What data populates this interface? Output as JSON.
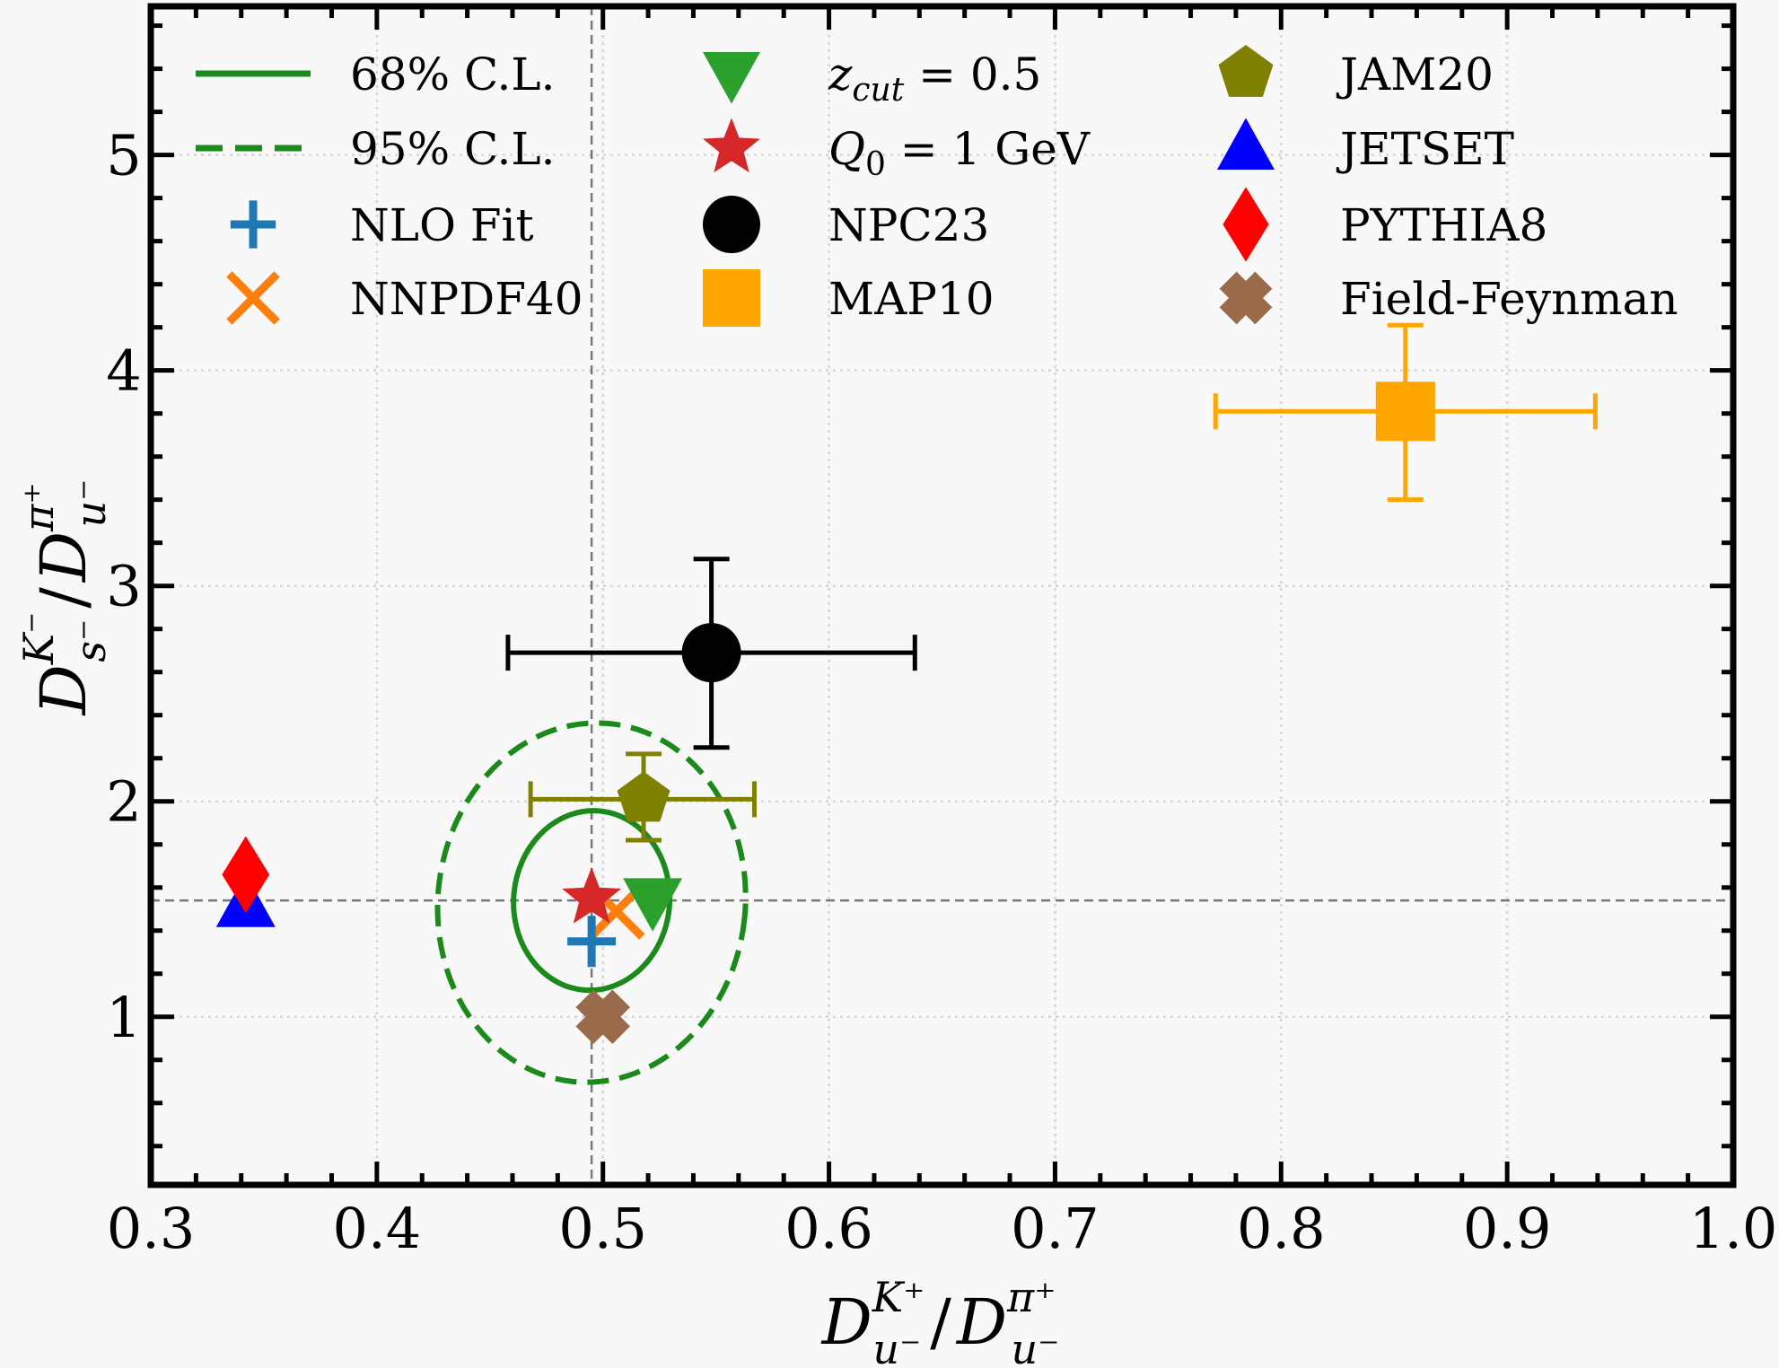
{
  "chart_data": {
    "type": "scatter",
    "title": "",
    "xlabel": {
      "main": "D",
      "sup1": "K⁺",
      "sub1": "u⁻",
      "sep": "/",
      "sup2": "π⁺",
      "sub2": "u⁻",
      "text": "D^{K+}_{u-} / D^{π+}_{u-}"
    },
    "ylabel": {
      "main": "D",
      "sup1": "K⁻",
      "sub1": "s⁻",
      "sep": "/",
      "sup2": "π⁺",
      "sub2": "u⁻",
      "text": "D^{K-}_{s-} / D^{π+}_{u-}"
    },
    "xlim": [
      0.3,
      1.0
    ],
    "ylim": [
      0.22,
      5.69
    ],
    "grid": true,
    "xticks": [
      0.3,
      0.4,
      0.5,
      0.6,
      0.7,
      0.8,
      0.9,
      1.0
    ],
    "xtick_labels": [
      "0.3",
      "0.4",
      "0.5",
      "0.6",
      "0.7",
      "0.8",
      "0.9",
      "1.0"
    ],
    "yticks": [
      1,
      2,
      3,
      4,
      5
    ],
    "ytick_labels": [
      "1",
      "2",
      "3",
      "4",
      "5"
    ],
    "x_minor_step": 0.02,
    "y_minor_step": 0.2,
    "reference_lines": {
      "vertical_x": 0.495,
      "horizontal_y": 1.54
    },
    "ellipses": [
      {
        "name": "68% C.L.",
        "cx": 0.495,
        "cy": 1.54,
        "rx": 0.0345,
        "ry": 0.417,
        "angle_deg": 5,
        "style": "solid",
        "color": "#1a8a1a"
      },
      {
        "name": "95% C.L.",
        "cx": 0.495,
        "cy": 1.53,
        "rx": 0.068,
        "ry": 0.835,
        "angle_deg": 6,
        "style": "dashed",
        "color": "#1a8a1a"
      }
    ],
    "series": [
      {
        "name": "NLO Fit",
        "marker": "plus",
        "color": "#1f77b4",
        "x": 0.495,
        "y": 1.35
      },
      {
        "name": "NNPDF40",
        "marker": "x",
        "color": "#ff7f0e",
        "x": 0.506,
        "y": 1.49
      },
      {
        "name": "z_cut = 0.5",
        "marker": "triangle-down",
        "color": "#2ca02c",
        "x": 0.522,
        "y": 1.54
      },
      {
        "name": "Q_0 = 1 GeV",
        "marker": "star",
        "color": "#d62728",
        "x": 0.495,
        "y": 1.55
      },
      {
        "name": "NPC23",
        "marker": "circle",
        "color": "#000000",
        "x": 0.548,
        "y": 2.69,
        "xerr": [
          0.458,
          0.638
        ],
        "yerr": [
          2.25,
          3.125
        ]
      },
      {
        "name": "MAP10",
        "marker": "square",
        "color": "#ffa500",
        "x": 0.855,
        "y": 3.81,
        "xerr": [
          0.771,
          0.939
        ],
        "yerr": [
          3.4,
          4.21
        ]
      },
      {
        "name": "JAM20",
        "marker": "pentagon",
        "color": "#808000",
        "x": 0.518,
        "y": 2.01,
        "xerr": [
          0.468,
          0.567
        ],
        "yerr": [
          1.82,
          2.22
        ]
      },
      {
        "name": "JETSET",
        "marker": "triangle-up",
        "color": "#0000ff",
        "x": 0.342,
        "y": 1.52
      },
      {
        "name": "PYTHIA8",
        "marker": "diamond",
        "color": "#ff0000",
        "x": 0.342,
        "y": 1.66
      },
      {
        "name": "Field-Feynman",
        "marker": "thick-x",
        "color": "#9a6b4b",
        "x": 0.5,
        "y": 1.0
      }
    ],
    "legend": {
      "placement": "top (3 columns)",
      "columns": [
        [
          {
            "label": "68% C.L.",
            "kind": "line-solid",
            "color": "#1a8a1a"
          },
          {
            "label": "95% C.L.",
            "kind": "line-dashed",
            "color": "#1a8a1a"
          },
          {
            "label": "NLO Fit",
            "kind": "plus",
            "color": "#1f77b4"
          },
          {
            "label": "NNPDF40",
            "kind": "x",
            "color": "#ff7f0e"
          }
        ],
        [
          {
            "label": "z_cut = 0.5",
            "kind": "triangle-down",
            "color": "#2ca02c",
            "math": {
              "base": "z",
              "sub": "cut",
              "rest": " = 0.5"
            }
          },
          {
            "label": "Q_0 = 1 GeV",
            "kind": "star",
            "color": "#d62728",
            "math": {
              "base": "Q",
              "sub": "0",
              "rest": " = 1 GeV"
            }
          },
          {
            "label": "NPC23",
            "kind": "circle",
            "color": "#000000"
          },
          {
            "label": "MAP10",
            "kind": "square",
            "color": "#ffa500"
          }
        ],
        [
          {
            "label": "JAM20",
            "kind": "pentagon",
            "color": "#808000"
          },
          {
            "label": "JETSET",
            "kind": "triangle-up",
            "color": "#0000ff"
          },
          {
            "label": "PYTHIA8",
            "kind": "diamond",
            "color": "#ff0000"
          },
          {
            "label": "Field-Feynman",
            "kind": "thick-x",
            "color": "#9a6b4b"
          }
        ]
      ]
    }
  }
}
